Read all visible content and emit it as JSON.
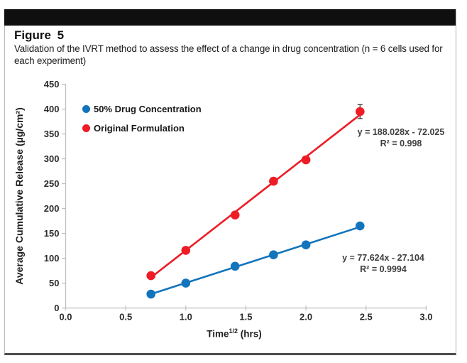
{
  "figure": {
    "label": "Figure 5",
    "caption": "Validation of the IVRT method to assess the effect of a change in drug concentration (n = 6 cells used for each experiment)"
  },
  "chart_data": {
    "type": "scatter",
    "x": [
      0.71,
      1.0,
      1.41,
      1.73,
      2.0,
      2.45
    ],
    "series": [
      {
        "name": "50% Drug Concentration",
        "color": "#1274bc",
        "values": [
          28,
          50,
          84,
          107,
          127,
          165
        ],
        "errors": [
          2,
          2,
          2,
          2,
          3,
          2
        ],
        "trendline": {
          "slope": 77.624,
          "intercept": -27.104
        },
        "equation": "y = 77.624x - 27.104",
        "r_squared": "R² = 0.9994"
      },
      {
        "name": "Original Formulation",
        "color": "#ee1c25",
        "values": [
          65,
          116,
          187,
          255,
          298,
          395
        ],
        "errors": [
          3,
          3,
          4,
          7,
          5,
          14
        ],
        "trendline": {
          "slope": 188.028,
          "intercept": -72.025
        },
        "equation": "y = 188.028x - 72.025",
        "r_squared": "R² = 0.998"
      }
    ],
    "xlabel": {
      "main": "Time",
      "sup": "1/2",
      "unit": " (hrs)"
    },
    "ylabel": "Average Cumulative Release (µg/cm²)",
    "xlim": [
      0,
      3
    ],
    "ylim": [
      0,
      450
    ],
    "x_ticks": [
      0,
      0.5,
      1,
      1.5,
      2,
      2.5,
      3
    ],
    "x_tick_labels": [
      "0.0",
      "0.5",
      "1.0",
      "1.5",
      "2.0",
      "2.5",
      "3.0"
    ],
    "y_ticks": [
      0,
      50,
      100,
      150,
      200,
      250,
      300,
      350,
      400,
      450
    ],
    "y_tick_labels": [
      "0",
      "50",
      "100",
      "150",
      "200",
      "250",
      "300",
      "350",
      "400",
      "450"
    ],
    "grid": false,
    "legend_position": "upper-left-inside",
    "axis_color": "#bfbfbf",
    "error_bar_color": "#2a2a2a",
    "tick_label_color": "#2b2b2b"
  }
}
